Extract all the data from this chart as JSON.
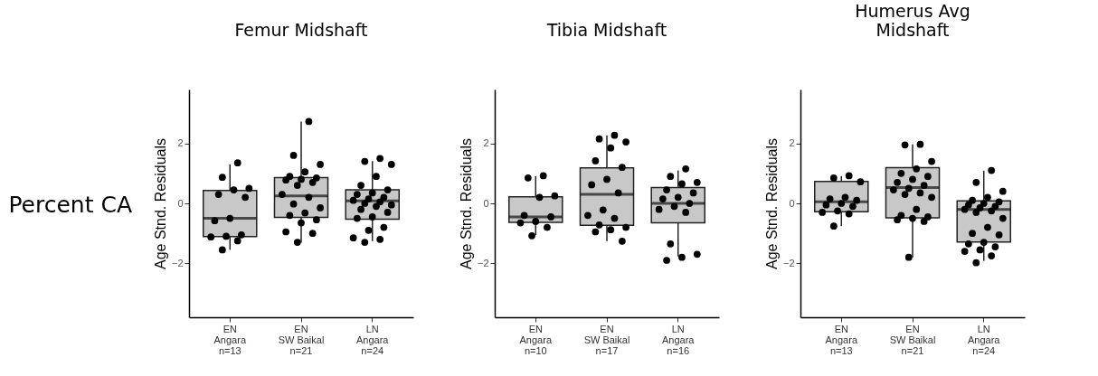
{
  "chart_data": [
    {
      "type": "box",
      "title": "Femur Midshaft",
      "ylabel": "Age Stnd. Residuals",
      "annotations": [
        "Percent CA"
      ],
      "categories": [
        "EN\nAngara\nn=13",
        "EN\nSW Baikal\nn=21",
        "LN\nAngara\nn=24"
      ],
      "ylim": [
        -3.8,
        3.8
      ],
      "yticks": [
        -2,
        0,
        2
      ],
      "grid": false,
      "series": [
        {
          "color": "#c8c8c8",
          "boxes": [
            {
              "low": -1.55,
              "q1": -1.11,
              "median": -0.5,
              "q3": 0.43,
              "high": 1.3
            },
            {
              "low": -1.31,
              "q1": -0.47,
              "median": 0.25,
              "q3": 0.86,
              "high": 2.73
            },
            {
              "low": -1.26,
              "q1": -0.53,
              "median": 0.08,
              "q3": 0.45,
              "high": 1.41
            }
          ]
        },
        {
          "type": "scatter",
          "color": "#000000",
          "x": [
            "EN\nAngara\nn=13",
            "EN\nAngara\nn=13",
            "EN\nAngara\nn=13",
            "EN\nAngara\nn=13",
            "EN\nAngara\nn=13",
            "EN\nAngara\nn=13",
            "EN\nAngara\nn=13",
            "EN\nAngara\nn=13",
            "EN\nAngara\nn=13",
            "EN\nAngara\nn=13",
            "EN\nAngara\nn=13",
            "EN\nAngara\nn=13",
            "EN\nAngara\nn=13",
            "EN\nSW Baikal\nn=21",
            "EN\nSW Baikal\nn=21",
            "EN\nSW Baikal\nn=21",
            "EN\nSW Baikal\nn=21",
            "EN\nSW Baikal\nn=21",
            "EN\nSW Baikal\nn=21",
            "EN\nSW Baikal\nn=21",
            "EN\nSW Baikal\nn=21",
            "EN\nSW Baikal\nn=21",
            "EN\nSW Baikal\nn=21",
            "EN\nSW Baikal\nn=21",
            "EN\nSW Baikal\nn=21",
            "EN\nSW Baikal\nn=21",
            "EN\nSW Baikal\nn=21",
            "EN\nSW Baikal\nn=21",
            "EN\nSW Baikal\nn=21",
            "EN\nSW Baikal\nn=21",
            "EN\nSW Baikal\nn=21",
            "EN\nSW Baikal\nn=21",
            "EN\nSW Baikal\nn=21",
            "EN\nSW Baikal\nn=21",
            "LN\nAngara\nn=24",
            "LN\nAngara\nn=24",
            "LN\nAngara\nn=24",
            "LN\nAngara\nn=24",
            "LN\nAngara\nn=24",
            "LN\nAngara\nn=24",
            "LN\nAngara\nn=24",
            "LN\nAngara\nn=24",
            "LN\nAngara\nn=24",
            "LN\nAngara\nn=24",
            "LN\nAngara\nn=24",
            "LN\nAngara\nn=24",
            "LN\nAngara\nn=24",
            "LN\nAngara\nn=24",
            "LN\nAngara\nn=24",
            "LN\nAngara\nn=24",
            "LN\nAngara\nn=24",
            "LN\nAngara\nn=24",
            "LN\nAngara\nn=24",
            "LN\nAngara\nn=24",
            "LN\nAngara\nn=24",
            "LN\nAngara\nn=24",
            "LN\nAngara\nn=24",
            "LN\nAngara\nn=24"
          ],
          "values": [
            1.35,
            0.87,
            0.5,
            0.45,
            0.3,
            0.2,
            -0.5,
            -0.58,
            -1.05,
            -1.1,
            -1.12,
            -1.25,
            -1.55,
            2.73,
            1.6,
            1.3,
            1.05,
            0.9,
            0.85,
            0.8,
            0.78,
            0.7,
            0.6,
            0.3,
            0.2,
            -0.02,
            -0.15,
            -0.32,
            -0.4,
            -0.55,
            -0.65,
            -0.95,
            -1.0,
            -1.3,
            1.5,
            1.4,
            1.3,
            0.9,
            0.6,
            0.45,
            0.35,
            0.3,
            0.2,
            0.15,
            0.1,
            0.05,
            0.0,
            -0.05,
            -0.1,
            -0.2,
            -0.3,
            -0.45,
            -0.5,
            -0.8,
            -0.9,
            -1.15,
            -1.2,
            -1.3
          ]
        }
      ]
    },
    {
      "type": "box",
      "title": "Tibia Midshaft",
      "ylabel": "Age Stnd. Residuals",
      "categories": [
        "EN\nAngara\nn=10",
        "EN\nSW Baikal\nn=17",
        "LN\nAngara\nn=16"
      ],
      "ylim": [
        -3.8,
        3.8
      ],
      "yticks": [
        -2,
        0,
        2
      ],
      "grid": false,
      "series": [
        {
          "color": "#c8c8c8",
          "boxes": [
            {
              "low": -1.06,
              "q1": -0.63,
              "median": -0.45,
              "q3": 0.22,
              "high": 0.91
            },
            {
              "low": -1.26,
              "q1": -0.73,
              "median": 0.3,
              "q3": 1.18,
              "high": 2.27
            },
            {
              "low": -1.77,
              "q1": -0.65,
              "median": 0.0,
              "q3": 0.53,
              "high": 1.1
            }
          ]
        },
        {
          "type": "scatter",
          "color": "#000000",
          "x": [
            "EN\nAngara\nn=10",
            "EN\nAngara\nn=10",
            "EN\nAngara\nn=10",
            "EN\nAngara\nn=10",
            "EN\nAngara\nn=10",
            "EN\nAngara\nn=10",
            "EN\nAngara\nn=10",
            "EN\nAngara\nn=10",
            "EN\nAngara\nn=10",
            "EN\nAngara\nn=10",
            "EN\nSW Baikal\nn=17",
            "EN\nSW Baikal\nn=17",
            "EN\nSW Baikal\nn=17",
            "EN\nSW Baikal\nn=17",
            "EN\nSW Baikal\nn=17",
            "EN\nSW Baikal\nn=17",
            "EN\nSW Baikal\nn=17",
            "EN\nSW Baikal\nn=17",
            "EN\nSW Baikal\nn=17",
            "EN\nSW Baikal\nn=17",
            "EN\nSW Baikal\nn=17",
            "EN\nSW Baikal\nn=17",
            "EN\nSW Baikal\nn=17",
            "EN\nSW Baikal\nn=17",
            "EN\nSW Baikal\nn=17",
            "EN\nSW Baikal\nn=17",
            "EN\nSW Baikal\nn=17",
            "LN\nAngara\nn=16",
            "LN\nAngara\nn=16",
            "LN\nAngara\nn=16",
            "LN\nAngara\nn=16",
            "LN\nAngara\nn=16",
            "LN\nAngara\nn=16",
            "LN\nAngara\nn=16",
            "LN\nAngara\nn=16",
            "LN\nAngara\nn=16",
            "LN\nAngara\nn=16",
            "LN\nAngara\nn=16",
            "LN\nAngara\nn=16",
            "LN\nAngara\nn=16",
            "LN\nAngara\nn=16",
            "LN\nAngara\nn=16",
            "LN\nAngara\nn=16"
          ],
          "values": [
            0.92,
            0.85,
            0.25,
            0.2,
            -0.4,
            -0.45,
            -0.6,
            -0.65,
            -0.8,
            -1.08,
            2.27,
            2.15,
            2.05,
            1.85,
            1.42,
            1.2,
            0.8,
            0.62,
            0.35,
            -0.22,
            -0.4,
            -0.5,
            -0.72,
            -0.8,
            -0.88,
            -0.95,
            -1.26,
            1.15,
            0.9,
            0.7,
            0.65,
            0.45,
            0.35,
            0.2,
            0.15,
            0.0,
            -0.1,
            -0.2,
            -0.3,
            -1.35,
            -1.7,
            -1.8,
            -1.9
          ]
        }
      ]
    },
    {
      "type": "box",
      "title": "Humerus Avg\nMidshaft",
      "ylabel": "Age Stnd. Residuals",
      "categories": [
        "EN\nAngara\nn=13",
        "EN\nSW Baikal\nn=21",
        "LN\nAngara\nn=24"
      ],
      "ylim": [
        -3.8,
        3.8
      ],
      "yticks": [
        -2,
        0,
        2
      ],
      "grid": false,
      "series": [
        {
          "color": "#c8c8c8",
          "boxes": [
            {
              "low": -0.76,
              "q1": -0.28,
              "median": 0.05,
              "q3": 0.73,
              "high": 0.91
            },
            {
              "low": -1.8,
              "q1": -0.48,
              "median": 0.53,
              "q3": 1.19,
              "high": 1.97
            },
            {
              "low": -1.92,
              "q1": -1.29,
              "median": -0.2,
              "q3": 0.08,
              "high": 1.09
            }
          ]
        },
        {
          "type": "scatter",
          "color": "#000000",
          "x": [
            "EN\nAngara\nn=13",
            "EN\nAngara\nn=13",
            "EN\nAngara\nn=13",
            "EN\nAngara\nn=13",
            "EN\nAngara\nn=13",
            "EN\nAngara\nn=13",
            "EN\nAngara\nn=13",
            "EN\nAngara\nn=13",
            "EN\nAngara\nn=13",
            "EN\nAngara\nn=13",
            "EN\nAngara\nn=13",
            "EN\nAngara\nn=13",
            "EN\nAngara\nn=13",
            "EN\nSW Baikal\nn=21",
            "EN\nSW Baikal\nn=21",
            "EN\nSW Baikal\nn=21",
            "EN\nSW Baikal\nn=21",
            "EN\nSW Baikal\nn=21",
            "EN\nSW Baikal\nn=21",
            "EN\nSW Baikal\nn=21",
            "EN\nSW Baikal\nn=21",
            "EN\nSW Baikal\nn=21",
            "EN\nSW Baikal\nn=21",
            "EN\nSW Baikal\nn=21",
            "EN\nSW Baikal\nn=21",
            "EN\nSW Baikal\nn=21",
            "EN\nSW Baikal\nn=21",
            "EN\nSW Baikal\nn=21",
            "EN\nSW Baikal\nn=21",
            "EN\nSW Baikal\nn=21",
            "EN\nSW Baikal\nn=21",
            "EN\nSW Baikal\nn=21",
            "EN\nSW Baikal\nn=21",
            "EN\nSW Baikal\nn=21",
            "LN\nAngara\nn=24",
            "LN\nAngara\nn=24",
            "LN\nAngara\nn=24",
            "LN\nAngara\nn=24",
            "LN\nAngara\nn=24",
            "LN\nAngara\nn=24",
            "LN\nAngara\nn=24",
            "LN\nAngara\nn=24",
            "LN\nAngara\nn=24",
            "LN\nAngara\nn=24",
            "LN\nAngara\nn=24",
            "LN\nAngara\nn=24",
            "LN\nAngara\nn=24",
            "LN\nAngara\nn=24",
            "LN\nAngara\nn=24",
            "LN\nAngara\nn=24",
            "LN\nAngara\nn=24",
            "LN\nAngara\nn=24",
            "LN\nAngara\nn=24",
            "LN\nAngara\nn=24",
            "LN\nAngara\nn=24",
            "LN\nAngara\nn=24",
            "LN\nAngara\nn=24",
            "LN\nAngara\nn=24"
          ],
          "values": [
            0.92,
            0.85,
            0.72,
            0.2,
            0.15,
            0.1,
            0.0,
            -0.05,
            -0.1,
            -0.25,
            -0.3,
            -0.35,
            -0.76,
            1.97,
            1.95,
            1.4,
            1.15,
            1.0,
            0.9,
            0.8,
            0.7,
            0.6,
            0.5,
            0.45,
            0.35,
            0.3,
            0.2,
            -0.2,
            -0.4,
            -0.45,
            -0.5,
            -0.55,
            -0.6,
            -1.8,
            1.1,
            0.7,
            0.4,
            0.2,
            0.1,
            0.05,
            0.0,
            -0.05,
            -0.1,
            -0.15,
            -0.2,
            -0.25,
            -0.3,
            -0.5,
            -0.8,
            -1.0,
            -1.05,
            -1.3,
            -1.35,
            -1.45,
            -1.55,
            -1.6,
            -1.75,
            -1.98
          ]
        }
      ]
    }
  ]
}
